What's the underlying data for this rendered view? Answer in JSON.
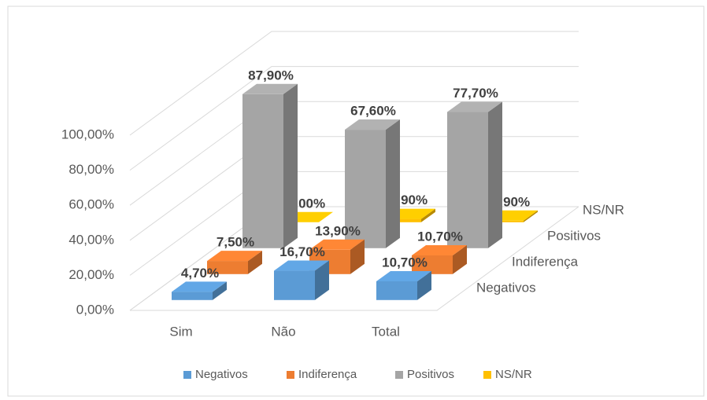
{
  "chart_data": {
    "type": "bar3d",
    "categories": [
      "Sim",
      "Não",
      "Total"
    ],
    "series": [
      {
        "name": "Negativos",
        "color": "#5b9bd5",
        "values": [
          4.7,
          16.7,
          10.7
        ],
        "value_labels": [
          "4,70%",
          "16,70%",
          "10,70%"
        ]
      },
      {
        "name": "Indiferença",
        "color": "#ed7d31",
        "values": [
          7.5,
          13.9,
          10.7
        ],
        "value_labels": [
          "7,50%",
          "13,90%",
          "10,70%"
        ]
      },
      {
        "name": "Positivos",
        "color": "#a5a5a5",
        "values": [
          87.9,
          67.6,
          77.7
        ],
        "value_labels": [
          "87,90%",
          "67,60%",
          "77,70%"
        ]
      },
      {
        "name": "NS/NR",
        "color": "#ffc000",
        "values": [
          0.0,
          1.9,
          0.9
        ],
        "value_labels": [
          "0,00%",
          "1,90%",
          "0,90%"
        ]
      }
    ],
    "ylim": [
      0,
      100
    ],
    "yticks": [
      {
        "value": 0,
        "label": "0,00%"
      },
      {
        "value": 20,
        "label": "20,00%"
      },
      {
        "value": 40,
        "label": "40,00%"
      },
      {
        "value": 60,
        "label": "60,00%"
      },
      {
        "value": 80,
        "label": "80,00%"
      },
      {
        "value": 100,
        "label": "100,00%"
      }
    ],
    "grid": true,
    "legend": "bottom"
  }
}
